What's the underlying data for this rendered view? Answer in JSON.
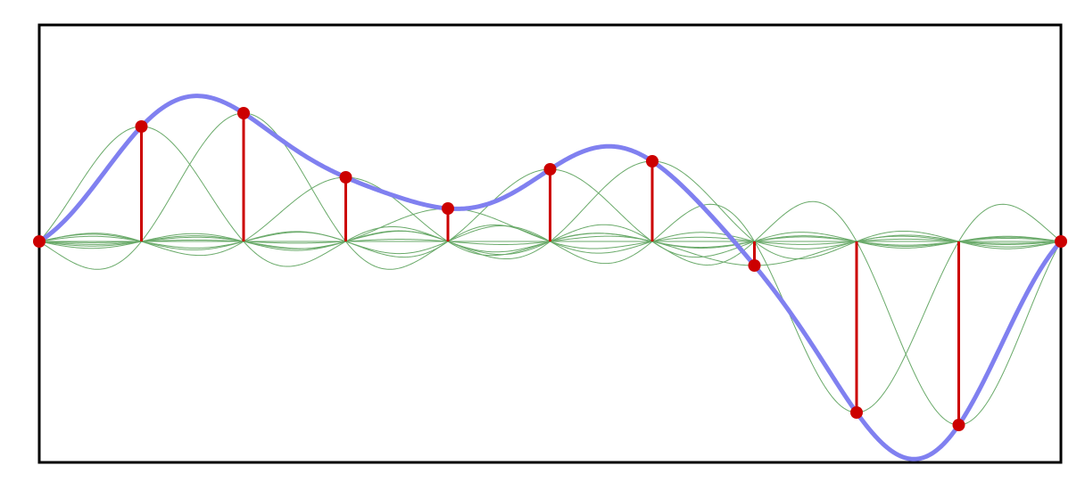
{
  "chart_data": {
    "type": "sinc-interpolation",
    "x": [
      0,
      1,
      2,
      3,
      4,
      5,
      6,
      7,
      8,
      9,
      10
    ],
    "values": [
      0,
      1.29,
      1.44,
      0.72,
      0.37,
      0.81,
      0.9,
      -0.27,
      -1.92,
      -2.06,
      0
    ],
    "xlim": [
      0,
      10
    ],
    "ylim": [
      -2.48,
      2.43
    ],
    "sample_color": "#cc0000",
    "component_color": "#6aaa6a",
    "curve_color": "#8080f0"
  }
}
